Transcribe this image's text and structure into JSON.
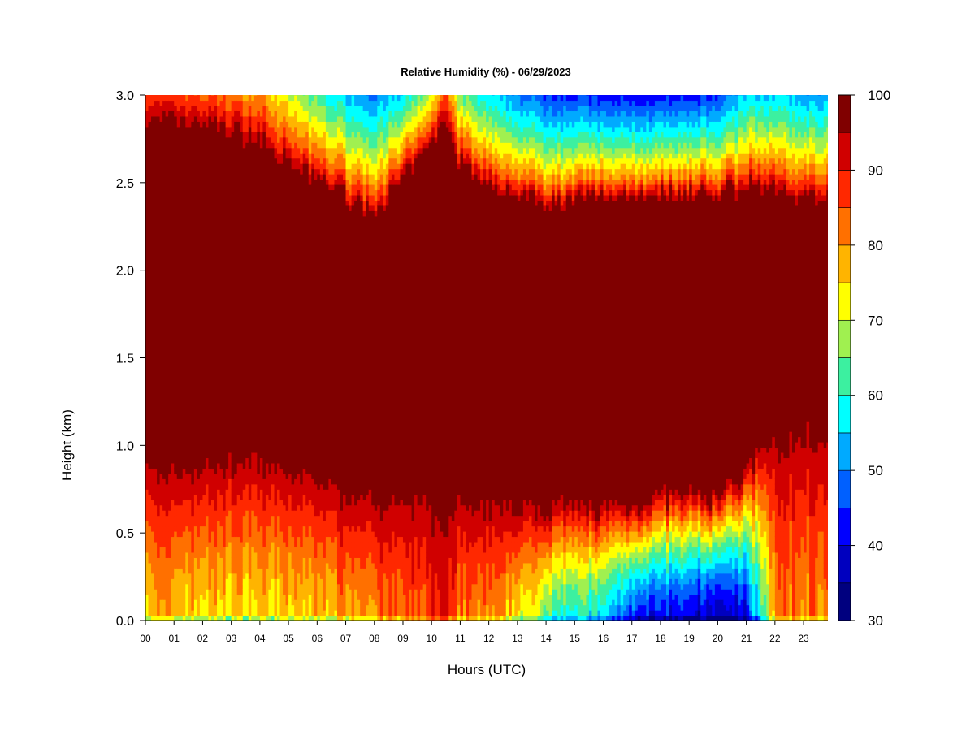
{
  "chart_data": {
    "type": "heatmap",
    "title": "Relative Humidity (%) - 06/29/2023",
    "xlabel": "Hours (UTC)",
    "ylabel": "Height (km)",
    "x_ticks": [
      "00",
      "01",
      "02",
      "03",
      "04",
      "05",
      "06",
      "07",
      "08",
      "09",
      "10",
      "11",
      "12",
      "13",
      "14",
      "15",
      "16",
      "17",
      "18",
      "19",
      "20",
      "21",
      "22",
      "23"
    ],
    "xlim": [
      0,
      23.85
    ],
    "y_ticks": [
      "0.0",
      "0.5",
      "1.0",
      "1.5",
      "2.0",
      "2.5",
      "3.0"
    ],
    "ylim": [
      0,
      3.0
    ],
    "colorbar": {
      "ticks": [
        "30",
        "40",
        "50",
        "60",
        "70",
        "80",
        "90",
        "100"
      ],
      "range": [
        30,
        100
      ],
      "step": 5,
      "colors": [
        "#00007F",
        "#0000BF",
        "#0000FF",
        "#0060FF",
        "#00AAFF",
        "#00FFFF",
        "#3CF0A0",
        "#A0F050",
        "#FFFF00",
        "#FFB400",
        "#FF7000",
        "#FF2800",
        "#D00000",
        "#800000"
      ]
    },
    "profile_hours": [
      0,
      2,
      4,
      5,
      6,
      7,
      8,
      9,
      10,
      10.5,
      11,
      12,
      13,
      14,
      15,
      16,
      17,
      18,
      19,
      20,
      21,
      22,
      23
    ],
    "moist_layer_base_km": [
      1.0,
      1.0,
      1.05,
      0.95,
      0.95,
      0.85,
      0.85,
      0.85,
      0.9,
      0.9,
      0.85,
      0.8,
      0.75,
      0.7,
      0.7,
      0.7,
      0.7,
      0.75,
      0.75,
      0.75,
      0.9,
      1.2,
      1.3
    ],
    "moist_layer_top_km": [
      2.82,
      2.8,
      2.72,
      2.58,
      2.5,
      2.4,
      2.3,
      2.5,
      2.7,
      2.82,
      2.6,
      2.45,
      2.42,
      2.38,
      2.38,
      2.4,
      2.42,
      2.42,
      2.42,
      2.42,
      2.48,
      2.45,
      2.4
    ],
    "surface_rh_percent": [
      78,
      75,
      75,
      75,
      76,
      80,
      82,
      82,
      88,
      88,
      82,
      80,
      75,
      65,
      60,
      55,
      45,
      40,
      38,
      36,
      40,
      80,
      82
    ],
    "rh_above_layer_percent": [
      88,
      85,
      80,
      70,
      62,
      55,
      50,
      55,
      70,
      85,
      65,
      55,
      50,
      45,
      45,
      42,
      42,
      42,
      42,
      45,
      55,
      55,
      52
    ]
  }
}
